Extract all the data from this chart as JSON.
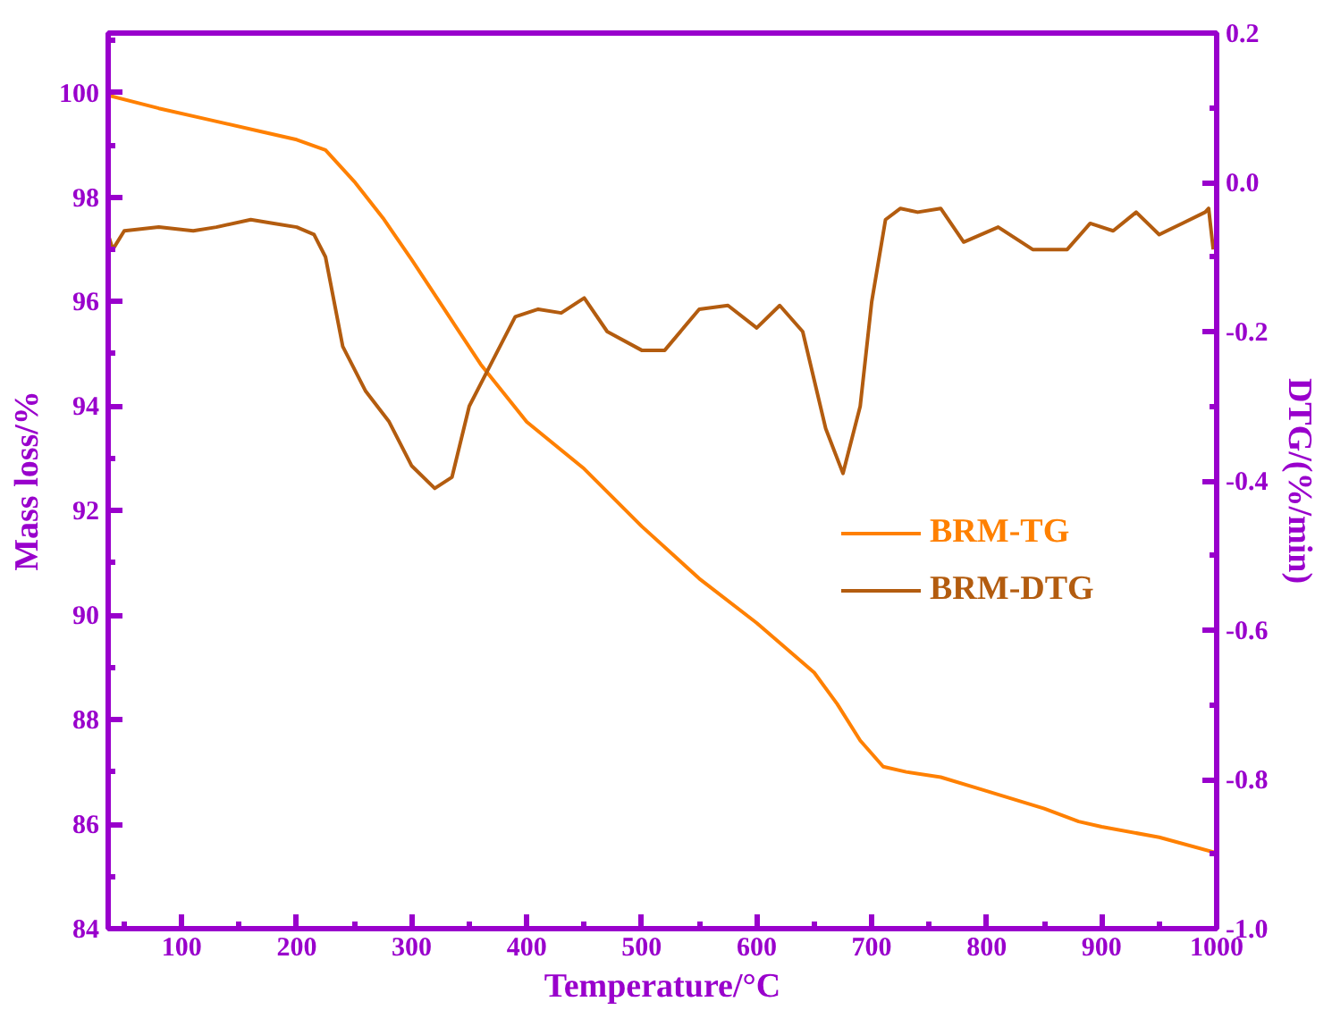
{
  "chart_data": {
    "type": "line",
    "xlabel": "Temperature/°C",
    "ylabel": "Mass loss/%",
    "y2label": "DTG/(%/min)",
    "xlim": [
      36,
      1000
    ],
    "xticks": [
      100,
      200,
      300,
      400,
      500,
      600,
      700,
      800,
      900,
      1000
    ],
    "ylim": [
      84,
      101.14
    ],
    "yticks": [
      84,
      86,
      88,
      90,
      92,
      94,
      96,
      98,
      100
    ],
    "y2lim": [
      -1.0,
      0.2
    ],
    "y2ticks": [
      {
        "value": -1.0,
        "label": "-1.0"
      },
      {
        "value": -0.8,
        "label": "-0.8"
      },
      {
        "value": -0.6,
        "label": "-0.6"
      },
      {
        "value": -0.4,
        "label": "-0.4"
      },
      {
        "value": -0.2,
        "label": "-0.2"
      },
      {
        "value": 0.0,
        "label": "0.0"
      },
      {
        "value": 0.2,
        "label": "0.2"
      }
    ],
    "grid": false,
    "legend": "right",
    "line_style": "solid",
    "marker": "none",
    "series": [
      {
        "name": "BRM-TG",
        "color": "#ff8000",
        "x": [
          36,
          80,
          120,
          170,
          200,
          225,
          250,
          275,
          300,
          330,
          360,
          400,
          450,
          500,
          550,
          600,
          650,
          670,
          690,
          710,
          730,
          760,
          790,
          820,
          850,
          880,
          900,
          950,
          1000
        ],
        "values": [
          99.95,
          99.7,
          99.5,
          99.25,
          99.1,
          98.9,
          98.3,
          97.6,
          96.8,
          95.8,
          94.8,
          93.7,
          92.8,
          91.7,
          90.7,
          89.85,
          88.9,
          88.3,
          87.6,
          87.1,
          87.0,
          86.9,
          86.7,
          86.5,
          86.3,
          86.05,
          85.95,
          85.75,
          85.45
        ]
      },
      {
        "name": "BRM-DTG",
        "color": "#b35c0f",
        "axis": "y2",
        "x": [
          36,
          40,
          50,
          80,
          110,
          130,
          160,
          180,
          200,
          215,
          225,
          240,
          260,
          280,
          300,
          320,
          335,
          350,
          370,
          390,
          410,
          430,
          450,
          470,
          500,
          520,
          550,
          575,
          600,
          620,
          640,
          660,
          675,
          690,
          700,
          712,
          725,
          740,
          760,
          780,
          810,
          840,
          870,
          890,
          910,
          930,
          950,
          970,
          990,
          993,
          997
        ],
        "values": [
          -0.07,
          -0.09,
          -0.065,
          -0.06,
          -0.065,
          -0.06,
          -0.05,
          -0.055,
          -0.06,
          -0.07,
          -0.1,
          -0.22,
          -0.28,
          -0.32,
          -0.38,
          -0.41,
          -0.395,
          -0.3,
          -0.24,
          -0.18,
          -0.17,
          -0.175,
          -0.155,
          -0.2,
          -0.225,
          -0.225,
          -0.17,
          -0.165,
          -0.195,
          -0.165,
          -0.2,
          -0.33,
          -0.39,
          -0.3,
          -0.16,
          -0.05,
          -0.035,
          -0.04,
          -0.035,
          -0.08,
          -0.06,
          -0.09,
          -0.09,
          -0.055,
          -0.065,
          -0.04,
          -0.07,
          -0.055,
          -0.04,
          -0.035,
          -0.09
        ]
      }
    ]
  }
}
